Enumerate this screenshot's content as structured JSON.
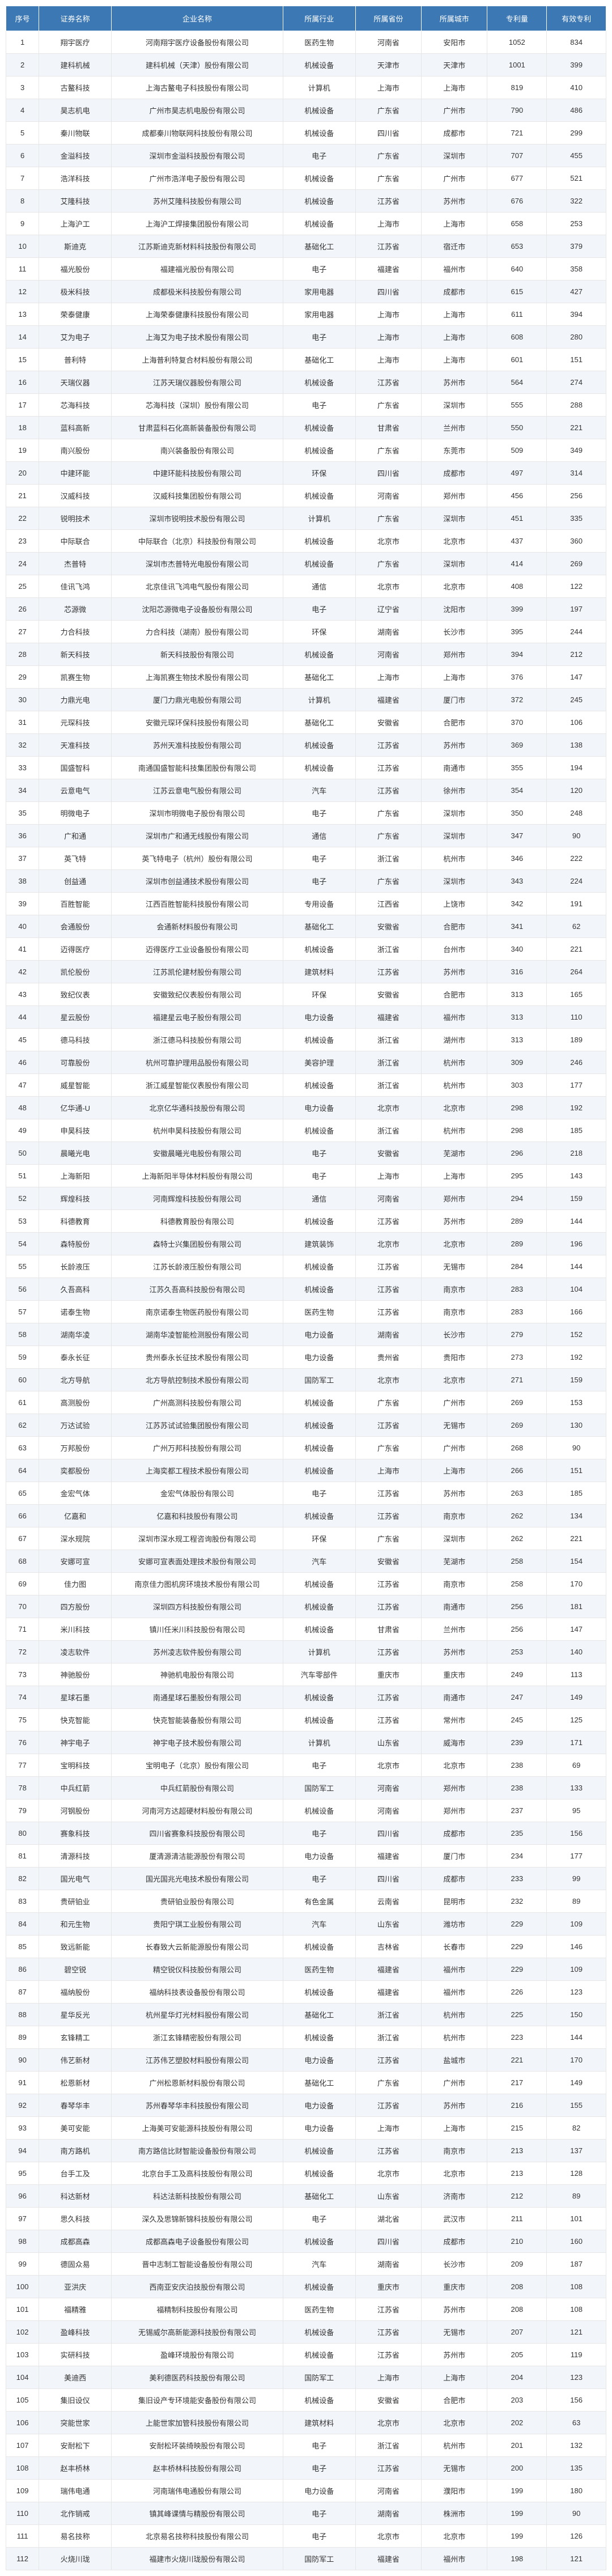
{
  "table": {
    "headers": [
      "序号",
      "证券名称",
      "企业名称",
      "所属行业",
      "所属省份",
      "所属城市",
      "专利量",
      "有效专利"
    ],
    "header_bg": "#3c78b4",
    "header_color": "#ffffff",
    "row_odd_bg": "#ffffff",
    "row_even_bg": "#f2f6fa",
    "border_color": "#e6e6e6",
    "text_color": "#333333",
    "font_size": 13,
    "rows": [
      [
        "1",
        "翔宇医疗",
        "河南翔宇医疗设备股份有限公司",
        "医药生物",
        "河南省",
        "安阳市",
        "1052",
        "834"
      ],
      [
        "2",
        "建科机械",
        "建科机械（天津）股份有限公司",
        "机械设备",
        "天津市",
        "天津市",
        "1001",
        "399"
      ],
      [
        "3",
        "古鳌科技",
        "上海古鳌电子科技股份有限公司",
        "计算机",
        "上海市",
        "上海市",
        "819",
        "410"
      ],
      [
        "4",
        "昊志机电",
        "广州市昊志机电股份有限公司",
        "机械设备",
        "广东省",
        "广州市",
        "790",
        "486"
      ],
      [
        "5",
        "秦川物联",
        "成都秦川物联网科技股份有限公司",
        "机械设备",
        "四川省",
        "成都市",
        "721",
        "299"
      ],
      [
        "6",
        "金溢科技",
        "深圳市金溢科技股份有限公司",
        "电子",
        "广东省",
        "深圳市",
        "707",
        "455"
      ],
      [
        "7",
        "浩洋科技",
        "广州市浩洋电子股份有限公司",
        "机械设备",
        "广东省",
        "广州市",
        "677",
        "521"
      ],
      [
        "8",
        "艾隆科技",
        "苏州艾隆科技股份有限公司",
        "机械设备",
        "江苏省",
        "苏州市",
        "676",
        "322"
      ],
      [
        "9",
        "上海沪工",
        "上海沪工焊接集团股份有限公司",
        "机械设备",
        "上海市",
        "上海市",
        "658",
        "253"
      ],
      [
        "10",
        "斯迪克",
        "江苏斯迪克新材料科技股份有限公司",
        "基础化工",
        "江苏省",
        "宿迁市",
        "653",
        "379"
      ],
      [
        "11",
        "福光股份",
        "福建福光股份有限公司",
        "电子",
        "福建省",
        "福州市",
        "640",
        "358"
      ],
      [
        "12",
        "极米科技",
        "成都极米科技股份有限公司",
        "家用电器",
        "四川省",
        "成都市",
        "615",
        "427"
      ],
      [
        "13",
        "荣泰健康",
        "上海荣泰健康科技股份有限公司",
        "家用电器",
        "上海市",
        "上海市",
        "611",
        "394"
      ],
      [
        "14",
        "艾为电子",
        "上海艾为电子技术股份有限公司",
        "电子",
        "上海市",
        "上海市",
        "608",
        "280"
      ],
      [
        "15",
        "普利特",
        "上海普利特复合材料股份有限公司",
        "基础化工",
        "上海市",
        "上海市",
        "601",
        "151"
      ],
      [
        "16",
        "天瑞仪器",
        "江苏天瑞仪器股份有限公司",
        "机械设备",
        "江苏省",
        "苏州市",
        "564",
        "274"
      ],
      [
        "17",
        "芯海科技",
        "芯海科技（深圳）股份有限公司",
        "电子",
        "广东省",
        "深圳市",
        "555",
        "288"
      ],
      [
        "18",
        "蓝科高新",
        "甘肃蓝科石化高新装备股份有限公司",
        "机械设备",
        "甘肃省",
        "兰州市",
        "550",
        "221"
      ],
      [
        "19",
        "南兴股份",
        "南兴装备股份有限公司",
        "机械设备",
        "广东省",
        "东莞市",
        "509",
        "349"
      ],
      [
        "20",
        "中建环能",
        "中建环能科技股份有限公司",
        "环保",
        "四川省",
        "成都市",
        "497",
        "314"
      ],
      [
        "21",
        "汉威科技",
        "汉威科技集团股份有限公司",
        "机械设备",
        "河南省",
        "郑州市",
        "456",
        "256"
      ],
      [
        "22",
        "锐明技术",
        "深圳市锐明技术股份有限公司",
        "计算机",
        "广东省",
        "深圳市",
        "451",
        "335"
      ],
      [
        "23",
        "中际联合",
        "中际联合（北京）科技股份有限公司",
        "机械设备",
        "北京市",
        "北京市",
        "437",
        "360"
      ],
      [
        "24",
        "杰普特",
        "深圳市杰普特光电股份有限公司",
        "机械设备",
        "广东省",
        "深圳市",
        "414",
        "269"
      ],
      [
        "25",
        "佳讯飞鸿",
        "北京佳讯飞鸿电气股份有限公司",
        "通信",
        "北京市",
        "北京市",
        "408",
        "122"
      ],
      [
        "26",
        "芯源微",
        "沈阳芯源微电子设备股份有限公司",
        "电子",
        "辽宁省",
        "沈阳市",
        "399",
        "197"
      ],
      [
        "27",
        "力合科技",
        "力合科技（湖南）股份有限公司",
        "环保",
        "湖南省",
        "长沙市",
        "395",
        "244"
      ],
      [
        "28",
        "新天科技",
        "新天科技股份有限公司",
        "机械设备",
        "河南省",
        "郑州市",
        "394",
        "212"
      ],
      [
        "29",
        "凯赛生物",
        "上海凯赛生物技术股份有限公司",
        "基础化工",
        "上海市",
        "上海市",
        "376",
        "147"
      ],
      [
        "30",
        "力鼎光电",
        "厦门力鼎光电股份有限公司",
        "计算机",
        "福建省",
        "厦门市",
        "372",
        "245"
      ],
      [
        "31",
        "元琛科技",
        "安徽元琛环保科技股份有限公司",
        "基础化工",
        "安徽省",
        "合肥市",
        "370",
        "106"
      ],
      [
        "32",
        "天准科技",
        "苏州天准科技股份有限公司",
        "机械设备",
        "江苏省",
        "苏州市",
        "369",
        "138"
      ],
      [
        "33",
        "国盛智科",
        "南通国盛智能科技集团股份有限公司",
        "机械设备",
        "江苏省",
        "南通市",
        "355",
        "194"
      ],
      [
        "34",
        "云意电气",
        "江苏云意电气股份有限公司",
        "汽车",
        "江苏省",
        "徐州市",
        "354",
        "120"
      ],
      [
        "35",
        "明微电子",
        "深圳市明微电子股份有限公司",
        "电子",
        "广东省",
        "深圳市",
        "350",
        "248"
      ],
      [
        "36",
        "广和通",
        "深圳市广和通无线股份有限公司",
        "通信",
        "广东省",
        "深圳市",
        "347",
        "90"
      ],
      [
        "37",
        "英飞特",
        "英飞特电子（杭州）股份有限公司",
        "电子",
        "浙江省",
        "杭州市",
        "346",
        "222"
      ],
      [
        "38",
        "创益通",
        "深圳市创益通技术股份有限公司",
        "电子",
        "广东省",
        "深圳市",
        "343",
        "224"
      ],
      [
        "39",
        "百胜智能",
        "江西百胜智能科技股份有限公司",
        "专用设备",
        "江西省",
        "上饶市",
        "342",
        "191"
      ],
      [
        "40",
        "会通股份",
        "会通新材料股份有限公司",
        "基础化工",
        "安徽省",
        "合肥市",
        "341",
        "62"
      ],
      [
        "41",
        "迈得医疗",
        "迈得医疗工业设备股份有限公司",
        "机械设备",
        "浙江省",
        "台州市",
        "340",
        "221"
      ],
      [
        "42",
        "凯伦股份",
        "江苏凯伦建材股份有限公司",
        "建筑材料",
        "江苏省",
        "苏州市",
        "316",
        "264"
      ],
      [
        "43",
        "致纪仪表",
        "安徽致纪仪表股份有限公司",
        "环保",
        "安徽省",
        "合肥市",
        "313",
        "165"
      ],
      [
        "44",
        "星云股份",
        "福建星云电子股份有限公司",
        "电力设备",
        "福建省",
        "福州市",
        "313",
        "110"
      ],
      [
        "45",
        "德马科技",
        "浙江德马科技股份有限公司",
        "机械设备",
        "浙江省",
        "湖州市",
        "313",
        "189"
      ],
      [
        "46",
        "可靠股份",
        "杭州可靠护理用品股份有限公司",
        "美容护理",
        "浙江省",
        "杭州市",
        "309",
        "246"
      ],
      [
        "47",
        "威星智能",
        "浙江威星智能仪表股份有限公司",
        "机械设备",
        "浙江省",
        "杭州市",
        "303",
        "177"
      ],
      [
        "48",
        "亿华通-U",
        "北京亿华通科技股份有限公司",
        "电力设备",
        "北京市",
        "北京市",
        "298",
        "192"
      ],
      [
        "49",
        "申昊科技",
        "杭州申昊科技股份有限公司",
        "机械设备",
        "浙江省",
        "杭州市",
        "298",
        "185"
      ],
      [
        "50",
        "晨曦光电",
        "安徽晨曦光电股份有限公司",
        "电子",
        "安徽省",
        "芜湖市",
        "296",
        "218"
      ],
      [
        "51",
        "上海新阳",
        "上海新阳半导体材料股份有限公司",
        "电子",
        "上海市",
        "上海市",
        "295",
        "143"
      ],
      [
        "52",
        "辉煌科技",
        "河南辉煌科技股份有限公司",
        "通信",
        "河南省",
        "郑州市",
        "294",
        "159"
      ],
      [
        "53",
        "科德教育",
        "科德教育股份有限公司",
        "机械设备",
        "江苏省",
        "苏州市",
        "289",
        "144"
      ],
      [
        "54",
        "森特股份",
        "森特士兴集团股份有限公司",
        "建筑装饰",
        "北京市",
        "北京市",
        "289",
        "196"
      ],
      [
        "55",
        "长龄液压",
        "江苏长龄液压股份有限公司",
        "机械设备",
        "江苏省",
        "无锡市",
        "284",
        "144"
      ],
      [
        "56",
        "久吾高科",
        "江苏久吾高科技股份有限公司",
        "机械设备",
        "江苏省",
        "南京市",
        "283",
        "104"
      ],
      [
        "57",
        "诺泰生物",
        "南京诺泰生物医药股份有限公司",
        "医药生物",
        "江苏省",
        "南京市",
        "283",
        "166"
      ],
      [
        "58",
        "湖南华凌",
        "湖南华凌智能检测股份有限公司",
        "电力设备",
        "湖南省",
        "长沙市",
        "279",
        "152"
      ],
      [
        "59",
        "泰永长征",
        "贵州泰永长征技术股份有限公司",
        "电力设备",
        "贵州省",
        "贵阳市",
        "273",
        "192"
      ],
      [
        "60",
        "北方导航",
        "北方导航控制技术股份有限公司",
        "国防军工",
        "北京市",
        "北京市",
        "271",
        "159"
      ],
      [
        "61",
        "高测股份",
        "广州高测科技股份有限公司",
        "机械设备",
        "广东省",
        "广州市",
        "269",
        "153"
      ],
      [
        "62",
        "万达试验",
        "江苏苏试试验集团股份有限公司",
        "机械设备",
        "江苏省",
        "无锡市",
        "269",
        "130"
      ],
      [
        "63",
        "万邦股份",
        "广州万邦科技股份有限公司",
        "机械设备",
        "广东省",
        "广州市",
        "268",
        "90"
      ],
      [
        "64",
        "奕都股份",
        "上海奕都工程技术股份有限公司",
        "机械设备",
        "上海市",
        "上海市",
        "266",
        "151"
      ],
      [
        "65",
        "金宏气体",
        "金宏气体股份有限公司",
        "电子",
        "江苏省",
        "苏州市",
        "263",
        "185"
      ],
      [
        "66",
        "亿嘉和",
        "亿嘉和科技股份有限公司",
        "机械设备",
        "江苏省",
        "南京市",
        "262",
        "134"
      ],
      [
        "67",
        "深水规院",
        "深圳市深水规工程咨询股份有限公司",
        "环保",
        "广东省",
        "深圳市",
        "262",
        "221"
      ],
      [
        "68",
        "安娜可宣",
        "安娜可宣表面处理技术股份有限公司",
        "汽车",
        "安徽省",
        "芜湖市",
        "258",
        "154"
      ],
      [
        "69",
        "佳力图",
        "南京佳力图机房环境技术股份有限公司",
        "机械设备",
        "江苏省",
        "南京市",
        "258",
        "170"
      ],
      [
        "70",
        "四方股份",
        "深圳四方科技股份有限公司",
        "机械设备",
        "江苏省",
        "南通市",
        "256",
        "181"
      ],
      [
        "71",
        "米川科技",
        "镇川任米川科技股份有限公司",
        "机械设备",
        "甘肃省",
        "兰州市",
        "256",
        "147"
      ],
      [
        "72",
        "凌志软件",
        "苏州凌志软件股份有限公司",
        "计算机",
        "江苏省",
        "苏州市",
        "253",
        "140"
      ],
      [
        "73",
        "神驰股份",
        "神驰机电股份有限公司",
        "汽车零部件",
        "重庆市",
        "重庆市",
        "249",
        "113"
      ],
      [
        "74",
        "星球石墨",
        "南通星球石墨股份有限公司",
        "机械设备",
        "江苏省",
        "南通市",
        "247",
        "149"
      ],
      [
        "75",
        "快克智能",
        "快克智能装备股份有限公司",
        "机械设备",
        "江苏省",
        "常州市",
        "245",
        "125"
      ],
      [
        "76",
        "神宇电子",
        "神宇电子技术股份有限公司",
        "计算机",
        "山东省",
        "威海市",
        "239",
        "171"
      ],
      [
        "77",
        "宝明科技",
        "宝明电子（北京）股份有限公司",
        "电子",
        "北京市",
        "北京市",
        "238",
        "69"
      ],
      [
        "78",
        "中兵红箭",
        "中兵红箭股份有限公司",
        "国防军工",
        "河南省",
        "郑州市",
        "238",
        "133"
      ],
      [
        "79",
        "河钢股份",
        "河南河方达超硬材料股份有限公司",
        "机械设备",
        "河南省",
        "郑州市",
        "237",
        "95"
      ],
      [
        "80",
        "赛象科技",
        "四川省赛象科技股份有限公司",
        "电子",
        "四川省",
        "成都市",
        "235",
        "156"
      ],
      [
        "81",
        "清源科技",
        "厦清源清洁能源股份有限公司",
        "电力设备",
        "福建省",
        "厦门市",
        "234",
        "177"
      ],
      [
        "82",
        "国光电气",
        "国光国兆光电技术股份有限公司",
        "电子",
        "四川省",
        "成都市",
        "233",
        "99"
      ],
      [
        "83",
        "贵研铂业",
        "贵研铂业股份有限公司",
        "有色金属",
        "云南省",
        "昆明市",
        "232",
        "89"
      ],
      [
        "84",
        "和元生物",
        "贵阳宁琪工业股份有限公司",
        "汽车",
        "山东省",
        "潍坊市",
        "229",
        "109"
      ],
      [
        "85",
        "致远新能",
        "长春致大云新能源股份有限公司",
        "机械设备",
        "吉林省",
        "长春市",
        "229",
        "146"
      ],
      [
        "86",
        "碧空锐",
        "精空锐仪科技股份有限公司",
        "医药生物",
        "福建省",
        "福州市",
        "229",
        "109"
      ],
      [
        "87",
        "福纳股份",
        "福纳科技表设备股份有限公司",
        "机械设备",
        "福建省",
        "福州市",
        "226",
        "123"
      ],
      [
        "88",
        "星华反光",
        "杭州星华灯光材料股份有限公司",
        "基础化工",
        "浙江省",
        "杭州市",
        "225",
        "150"
      ],
      [
        "89",
        "玄锋精工",
        "浙江玄锋精密股份有限公司",
        "机械设备",
        "浙江省",
        "杭州市",
        "223",
        "144"
      ],
      [
        "90",
        "伟艺新材",
        "江苏伟艺塑胶材料股份有限公司",
        "电力设备",
        "江苏省",
        "盐城市",
        "221",
        "170"
      ],
      [
        "91",
        "松恩新材",
        "广州松恩新材料股份有限公司",
        "基础化工",
        "广东省",
        "广州市",
        "217",
        "149"
      ],
      [
        "92",
        "春琴华丰",
        "苏州春琴华丰科技股份有限公司",
        "电力设备",
        "江苏省",
        "苏州市",
        "216",
        "155"
      ],
      [
        "93",
        "美可安能",
        "上海美可安能源科技股份有限公司",
        "电力设备",
        "上海市",
        "上海市",
        "215",
        "82"
      ],
      [
        "94",
        "南方路机",
        "南方路信比财智能设备股份有限公司",
        "机械设备",
        "江苏省",
        "南京市",
        "213",
        "137"
      ],
      [
        "95",
        "台手工及",
        "北京台手工及高科技股份有限公司",
        "机械设备",
        "北京市",
        "北京市",
        "213",
        "128"
      ],
      [
        "96",
        "科达新材",
        "科达法新科技股份有限公司",
        "基础化工",
        "山东省",
        "济南市",
        "212",
        "89"
      ],
      [
        "97",
        "思久科技",
        "深久及思锦新锦科技股份有限公司",
        "电子",
        "湖北省",
        "武汉市",
        "211",
        "101"
      ],
      [
        "98",
        "成都高森",
        "成都高森电子设备股份有限公司",
        "机械设备",
        "四川省",
        "成都市",
        "210",
        "160"
      ],
      [
        "99",
        "德固众易",
        "晋中志制工智能设备股份有限公司",
        "汽车",
        "湖南省",
        "长沙市",
        "209",
        "187"
      ],
      [
        "100",
        "亚洪庆",
        "西南亚安庆泊技股份有限公司",
        "机械设备",
        "重庆市",
        "重庆市",
        "208",
        "108"
      ],
      [
        "101",
        "福精雅",
        "福精制科技股份有限公司",
        "医药生物",
        "江苏省",
        "苏州市",
        "208",
        "108"
      ],
      [
        "102",
        "盈峰科技",
        "无锡威尔高新能源科技股份有限公司",
        "机械设备",
        "江苏省",
        "无锡市",
        "207",
        "121"
      ],
      [
        "103",
        "实研科技",
        "盈峰环境股份有限公司",
        "机械设备",
        "江苏省",
        "苏州市",
        "205",
        "119"
      ],
      [
        "104",
        "美迪西",
        "美利德医药科技股份有限公司",
        "国防军工",
        "上海市",
        "上海市",
        "204",
        "123"
      ],
      [
        "105",
        "集旧设仪",
        "集旧设产专环境能安备股份有限公司",
        "机械设备",
        "安徽省",
        "合肥市",
        "203",
        "156"
      ],
      [
        "106",
        "突能世家",
        "上能世家加管科技股份有限公司",
        "建筑材料",
        "北京市",
        "北京市",
        "202",
        "63"
      ],
      [
        "107",
        "安耐松下",
        "安耐松环装绮映股份有限公司",
        "电子",
        "浙江省",
        "杭州市",
        "201",
        "132"
      ],
      [
        "108",
        "赵丰桥林",
        "赵丰桥林科技股份有限公司",
        "电子",
        "江苏省",
        "无锡市",
        "200",
        "135"
      ],
      [
        "109",
        "瑞伟电通",
        "河南瑞伟电通股份有限公司",
        "电力设备",
        "河南省",
        "濮阳市",
        "199",
        "180"
      ],
      [
        "110",
        "北作销戒",
        "镇其峰课情与精股份有限公司",
        "电子",
        "湖南省",
        "株洲市",
        "199",
        "90"
      ],
      [
        "111",
        "易名技称",
        "北京易名技称科技股份有限公司",
        "电子",
        "北京市",
        "北京市",
        "199",
        "126"
      ],
      [
        "112",
        "火烧川珑",
        "福建市火烧川珑股份有限公司",
        "国防军工",
        "福建省",
        "福州市",
        "198",
        "121"
      ]
    ]
  }
}
